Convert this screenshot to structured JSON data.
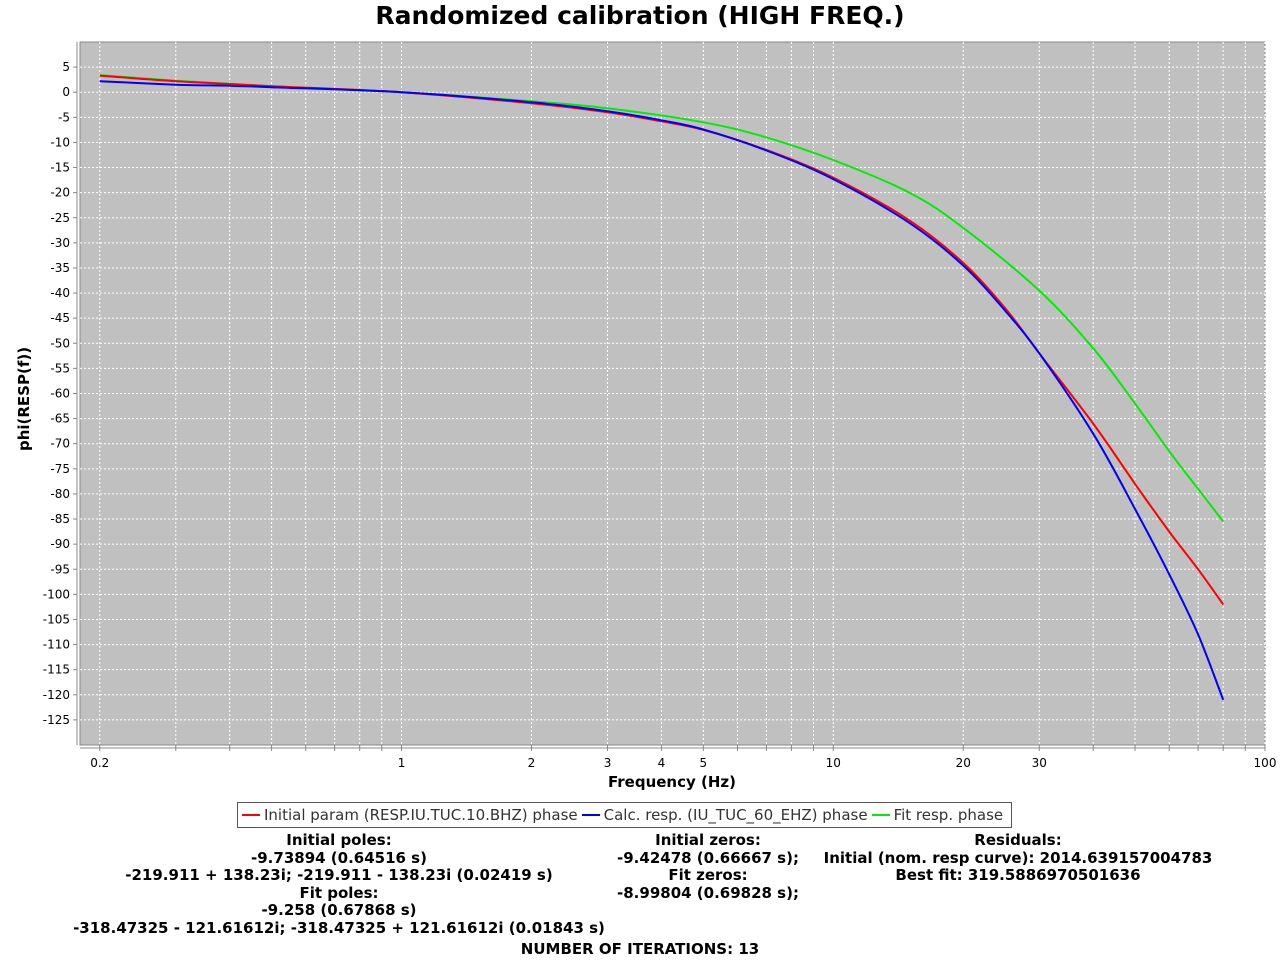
{
  "chart_data": {
    "type": "line",
    "title": "Randomized calibration (HIGH FREQ.)",
    "xlabel": "Frequency (Hz)",
    "ylabel": "phi(RESP(f))",
    "x_scale": "log",
    "xlim": [
      0.18,
      100
    ],
    "ylim": [
      -130,
      10
    ],
    "grid": true,
    "background": "#c0c0c0",
    "grid_color": "#ffffff",
    "x_tick_labels": [
      "0.2",
      "1",
      "2",
      "3",
      "4",
      "5",
      "10",
      "20",
      "30",
      "100"
    ],
    "y_ticks": [
      5,
      0,
      -5,
      -10,
      -15,
      -20,
      -25,
      -30,
      -35,
      -40,
      -45,
      -50,
      -55,
      -60,
      -65,
      -70,
      -75,
      -80,
      -85,
      -90,
      -95,
      -100,
      -105,
      -110,
      -115,
      -120,
      -125
    ],
    "legend_position": "bottom",
    "series": [
      {
        "name": "Initial param (RESP.IU.TUC.10.BHZ) phase",
        "color": "#ff0000",
        "points": [
          [
            0.2,
            3.3
          ],
          [
            0.3,
            2.2
          ],
          [
            0.5,
            1.2
          ],
          [
            1,
            0
          ],
          [
            2,
            -2.2
          ],
          [
            3,
            -4.0
          ],
          [
            4,
            -5.8
          ],
          [
            5,
            -7.5
          ],
          [
            7,
            -11.5
          ],
          [
            10,
            -17.0
          ],
          [
            15,
            -25.5
          ],
          [
            20,
            -34.0
          ],
          [
            25,
            -43.0
          ],
          [
            30,
            -52.0
          ],
          [
            40,
            -66.0
          ],
          [
            50,
            -78.0
          ],
          [
            60,
            -87.5
          ],
          [
            70,
            -95.0
          ],
          [
            80,
            -102.0
          ]
        ]
      },
      {
        "name": "Calc. resp. (IU_TUC_60_EHZ) phase",
        "color": "#0000ff",
        "points": [
          [
            0.2,
            2.2
          ],
          [
            0.3,
            1.5
          ],
          [
            0.4,
            1.3
          ],
          [
            0.5,
            1.0
          ],
          [
            1,
            0
          ],
          [
            2,
            -2.0
          ],
          [
            3,
            -3.8
          ],
          [
            4,
            -5.6
          ],
          [
            5,
            -7.4
          ],
          [
            7,
            -11.6
          ],
          [
            10,
            -17.3
          ],
          [
            15,
            -26.0
          ],
          [
            20,
            -34.5
          ],
          [
            25,
            -43.5
          ],
          [
            30,
            -52.0
          ],
          [
            40,
            -68.0
          ],
          [
            50,
            -83.0
          ],
          [
            60,
            -96.0
          ],
          [
            70,
            -108.0
          ],
          [
            80,
            -121.0
          ]
        ]
      },
      {
        "name": "Fit resp. phase",
        "color": "#00ee00",
        "points": [
          [
            0.2,
            3.4
          ],
          [
            0.3,
            2.3
          ],
          [
            0.5,
            1.2
          ],
          [
            1,
            0
          ],
          [
            2,
            -1.8
          ],
          [
            3,
            -3.2
          ],
          [
            5,
            -6.0
          ],
          [
            7,
            -9.0
          ],
          [
            10,
            -13.5
          ],
          [
            15,
            -20.0
          ],
          [
            20,
            -27.0
          ],
          [
            30,
            -39.5
          ],
          [
            40,
            -51.0
          ],
          [
            50,
            -62.0
          ],
          [
            60,
            -71.5
          ],
          [
            70,
            -79.0
          ],
          [
            80,
            -85.5
          ]
        ]
      }
    ]
  },
  "info": {
    "poles": {
      "initial_label": "Initial poles:",
      "initial_values": [
        "-9.73894 (0.64516 s)",
        "-219.911 + 138.23i;  -219.911 - 138.23i (0.02419 s)"
      ],
      "fit_label": "Fit poles:",
      "fit_values": [
        "-9.258 (0.67868 s)",
        "-318.47325 - 121.61612i;  -318.47325 + 121.61612i (0.01843 s)"
      ]
    },
    "zeros": {
      "initial_label": "Initial zeros:",
      "initial_value": "-9.42478 (0.66667 s);",
      "fit_label": "Fit zeros:",
      "fit_value": "-8.99804 (0.69828 s);"
    },
    "residuals": {
      "label": "Residuals:",
      "initial": "Initial (nom. resp curve): 2014.639157004783",
      "best": "Best fit: 319.5886970501636"
    },
    "iterations": "NUMBER OF ITERATIONS: 13"
  }
}
